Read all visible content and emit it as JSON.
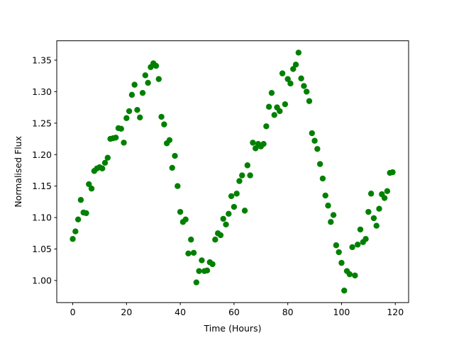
{
  "chart_data": {
    "type": "scatter",
    "xlabel": "Time (Hours)",
    "ylabel": "Normalised Flux",
    "color": "#008000",
    "x": [
      0,
      1,
      2,
      3,
      4,
      5,
      6,
      7,
      8,
      9,
      10,
      11,
      12,
      13,
      14,
      15,
      16,
      17,
      18,
      19,
      20,
      21,
      22,
      23,
      24,
      25,
      26,
      27,
      28,
      29,
      30,
      31,
      32,
      33,
      34,
      35,
      36,
      37,
      38,
      39,
      40,
      41,
      42,
      43,
      44,
      45,
      46,
      47,
      48,
      49,
      50,
      51,
      52,
      53,
      54,
      55,
      56,
      57,
      58,
      59,
      60,
      61,
      62,
      63,
      64,
      65,
      66,
      67,
      68,
      69,
      70,
      71,
      72,
      73,
      74,
      75,
      76,
      77,
      78,
      79,
      80,
      81,
      82,
      83,
      84,
      85,
      86,
      87,
      88,
      89,
      90,
      91,
      92,
      93,
      94,
      95,
      96,
      97,
      98,
      99,
      100,
      101,
      102,
      103,
      104,
      105,
      106,
      107,
      108,
      109,
      110,
      111,
      112,
      113,
      114,
      115,
      116,
      117,
      118,
      119
    ],
    "values": [
      1.066,
      1.078,
      1.097,
      1.128,
      1.108,
      1.107,
      1.153,
      1.146,
      1.174,
      1.178,
      1.18,
      1.178,
      1.187,
      1.195,
      1.225,
      1.226,
      1.227,
      1.242,
      1.241,
      1.219,
      1.258,
      1.269,
      1.295,
      1.311,
      1.271,
      1.259,
      1.298,
      1.326,
      1.314,
      1.339,
      1.345,
      1.341,
      1.32,
      1.26,
      1.248,
      1.218,
      1.223,
      1.179,
      1.198,
      1.15,
      1.109,
      1.093,
      1.097,
      1.043,
      1.065,
      1.044,
      0.997,
      1.015,
      1.032,
      1.015,
      1.016,
      1.029,
      1.026,
      1.065,
      1.075,
      1.072,
      1.098,
      1.089,
      1.106,
      1.134,
      1.117,
      1.138,
      1.158,
      1.167,
      1.111,
      1.183,
      1.167,
      1.219,
      1.21,
      1.217,
      1.213,
      1.217,
      1.245,
      1.276,
      1.298,
      1.263,
      1.275,
      1.269,
      1.329,
      1.28,
      1.32,
      1.313,
      1.336,
      1.343,
      1.362,
      1.321,
      1.309,
      1.3,
      1.285,
      1.234,
      1.222,
      1.209,
      1.185,
      1.162,
      1.135,
      1.119,
      1.093,
      1.104,
      1.056,
      1.045,
      1.028,
      0.984,
      1.015,
      1.01,
      1.053,
      1.008,
      1.057,
      1.081,
      1.061,
      1.066,
      1.109,
      1.138,
      1.099,
      1.087,
      1.114,
      1.137,
      1.131,
      1.142,
      1.171,
      1.172
    ],
    "xlim": [
      -5.95,
      124.95
    ],
    "ylim": [
      0.9649,
      1.3808
    ],
    "xticks": [
      0,
      20,
      40,
      60,
      80,
      100,
      120
    ],
    "yticks": [
      {
        "value": 1,
        "label": "1.00"
      },
      1.05,
      {
        "value": 1.1,
        "label": "1.10"
      },
      1.15,
      {
        "value": 1.2,
        "label": "1.20"
      },
      1.25,
      {
        "value": 1.3,
        "label": "1.30"
      },
      1.35
    ]
  }
}
